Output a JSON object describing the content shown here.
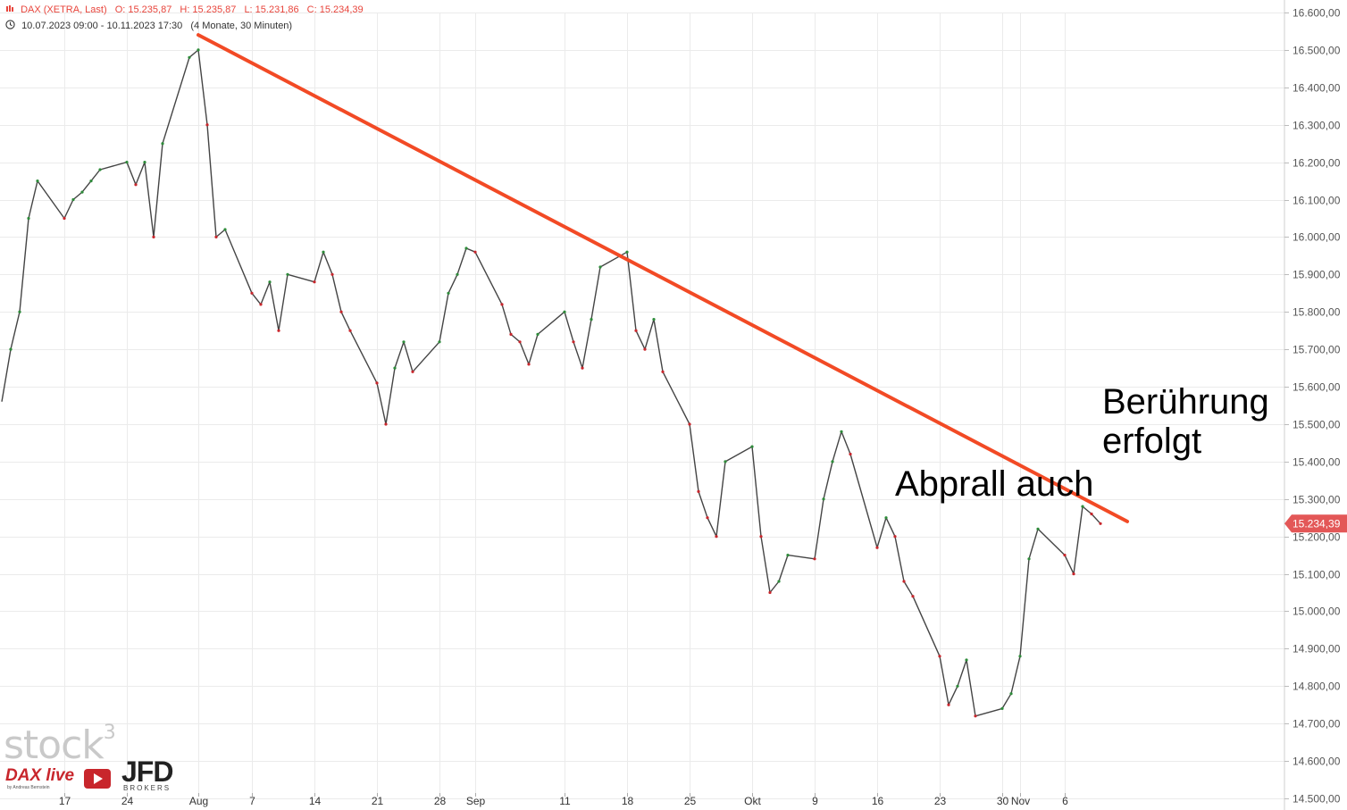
{
  "header": {
    "symbol": "DAX (XETRA, Last)",
    "open": "O: 15.235,87",
    "high": "H: 15.235,87",
    "low": "L: 15.231,86",
    "close": "C: 15.234,39",
    "range": "10.07.2023 09:00 - 10.11.2023 17:30",
    "period": "(4 Monate, 30 Minuten)"
  },
  "annotations": {
    "touch_line1": "Berührung",
    "touch_line2": "erfolgt",
    "bounce": "Abprall auch"
  },
  "logos": {
    "stock": "stock",
    "stock_sup": "3",
    "dax_live": "DAX live",
    "dax_sub": "by Andreas Bernstein",
    "jfd": "JFD",
    "jfd_sub": "BROKERS"
  },
  "colors": {
    "trendline": "#f24a25",
    "price_line": "#444444",
    "candle_up": "#2e8b3a",
    "candle_down": "#c8262c",
    "last_price_tag": "#e35757",
    "grid": "#ebebeb"
  },
  "chart_data": {
    "type": "line",
    "x_axis": {
      "range": [
        "2023-07-10",
        "2023-11-10"
      ],
      "ticks": [
        {
          "date": "2023-07-17",
          "label": "17"
        },
        {
          "date": "2023-07-24",
          "label": "24"
        },
        {
          "date": "2023-08-01",
          "label": "Aug"
        },
        {
          "date": "2023-08-07",
          "label": "7"
        },
        {
          "date": "2023-08-14",
          "label": "14"
        },
        {
          "date": "2023-08-21",
          "label": "21"
        },
        {
          "date": "2023-08-28",
          "label": "28"
        },
        {
          "date": "2023-09-01",
          "label": "Sep"
        },
        {
          "date": "2023-09-11",
          "label": "11"
        },
        {
          "date": "2023-09-18",
          "label": "18"
        },
        {
          "date": "2023-09-25",
          "label": "25"
        },
        {
          "date": "2023-10-02",
          "label": "Okt"
        },
        {
          "date": "2023-10-09",
          "label": "9"
        },
        {
          "date": "2023-10-16",
          "label": "16"
        },
        {
          "date": "2023-10-23",
          "label": "23"
        },
        {
          "date": "2023-10-30",
          "label": "30"
        },
        {
          "date": "2023-11-01",
          "label": "Nov"
        },
        {
          "date": "2023-11-06",
          "label": "6"
        }
      ]
    },
    "y_axis": {
      "min": 14500,
      "max": 16600,
      "ticks": [
        {
          "value": 14500,
          "label": "14.500,00"
        },
        {
          "value": 14600,
          "label": "14.600,00"
        },
        {
          "value": 14700,
          "label": "14.700,00"
        },
        {
          "value": 14800,
          "label": "14.800,00"
        },
        {
          "value": 14900,
          "label": "14.900,00"
        },
        {
          "value": 15000,
          "label": "15.000,00"
        },
        {
          "value": 15100,
          "label": "15.100,00"
        },
        {
          "value": 15200,
          "label": "15.200,00"
        },
        {
          "value": 15300,
          "label": "15.300,00"
        },
        {
          "value": 15400,
          "label": "15.400,00"
        },
        {
          "value": 15500,
          "label": "15.500,00"
        },
        {
          "value": 15600,
          "label": "15.600,00"
        },
        {
          "value": 15700,
          "label": "15.700,00"
        },
        {
          "value": 15800,
          "label": "15.800,00"
        },
        {
          "value": 15900,
          "label": "15.900,00"
        },
        {
          "value": 16000,
          "label": "16.000,00"
        },
        {
          "value": 16100,
          "label": "16.100,00"
        },
        {
          "value": 16200,
          "label": "16.200,00"
        },
        {
          "value": 16300,
          "label": "16.300,00"
        },
        {
          "value": 16400,
          "label": "16.400,00"
        },
        {
          "value": 16500,
          "label": "16.500,00"
        },
        {
          "value": 16600,
          "label": "16.600,00"
        }
      ]
    },
    "grid": true,
    "series": [
      {
        "points": [
          [
            "2023-07-10",
            15560
          ],
          [
            "2023-07-11",
            15700
          ],
          [
            "2023-07-12",
            15800
          ],
          [
            "2023-07-13",
            16050
          ],
          [
            "2023-07-14",
            16150
          ],
          [
            "2023-07-17",
            16050
          ],
          [
            "2023-07-18",
            16100
          ],
          [
            "2023-07-19",
            16120
          ],
          [
            "2023-07-20",
            16150
          ],
          [
            "2023-07-21",
            16180
          ],
          [
            "2023-07-24",
            16200
          ],
          [
            "2023-07-25",
            16140
          ],
          [
            "2023-07-26",
            16200
          ],
          [
            "2023-07-27",
            16000
          ],
          [
            "2023-07-28",
            16250
          ],
          [
            "2023-07-31",
            16480
          ],
          [
            "2023-08-01",
            16500
          ],
          [
            "2023-08-02",
            16300
          ],
          [
            "2023-08-03",
            16000
          ],
          [
            "2023-08-04",
            16020
          ],
          [
            "2023-08-07",
            15850
          ],
          [
            "2023-08-08",
            15820
          ],
          [
            "2023-08-09",
            15880
          ],
          [
            "2023-08-10",
            15750
          ],
          [
            "2023-08-11",
            15900
          ],
          [
            "2023-08-14",
            15880
          ],
          [
            "2023-08-15",
            15960
          ],
          [
            "2023-08-16",
            15900
          ],
          [
            "2023-08-17",
            15800
          ],
          [
            "2023-08-18",
            15750
          ],
          [
            "2023-08-21",
            15610
          ],
          [
            "2023-08-22",
            15500
          ],
          [
            "2023-08-23",
            15650
          ],
          [
            "2023-08-24",
            15720
          ],
          [
            "2023-08-25",
            15640
          ],
          [
            "2023-08-28",
            15720
          ],
          [
            "2023-08-29",
            15850
          ],
          [
            "2023-08-30",
            15900
          ],
          [
            "2023-08-31",
            15970
          ],
          [
            "2023-09-01",
            15960
          ],
          [
            "2023-09-04",
            15820
          ],
          [
            "2023-09-05",
            15740
          ],
          [
            "2023-09-06",
            15720
          ],
          [
            "2023-09-07",
            15660
          ],
          [
            "2023-09-08",
            15740
          ],
          [
            "2023-09-11",
            15800
          ],
          [
            "2023-09-12",
            15720
          ],
          [
            "2023-09-13",
            15650
          ],
          [
            "2023-09-14",
            15780
          ],
          [
            "2023-09-15",
            15920
          ],
          [
            "2023-09-18",
            15960
          ],
          [
            "2023-09-19",
            15750
          ],
          [
            "2023-09-20",
            15700
          ],
          [
            "2023-09-21",
            15780
          ],
          [
            "2023-09-22",
            15640
          ],
          [
            "2023-09-25",
            15500
          ],
          [
            "2023-09-26",
            15320
          ],
          [
            "2023-09-27",
            15250
          ],
          [
            "2023-09-28",
            15200
          ],
          [
            "2023-09-29",
            15400
          ],
          [
            "2023-10-02",
            15440
          ],
          [
            "2023-10-03",
            15200
          ],
          [
            "2023-10-04",
            15050
          ],
          [
            "2023-10-05",
            15080
          ],
          [
            "2023-10-06",
            15150
          ],
          [
            "2023-10-09",
            15140
          ],
          [
            "2023-10-10",
            15300
          ],
          [
            "2023-10-11",
            15400
          ],
          [
            "2023-10-12",
            15480
          ],
          [
            "2023-10-13",
            15420
          ],
          [
            "2023-10-16",
            15170
          ],
          [
            "2023-10-17",
            15250
          ],
          [
            "2023-10-18",
            15200
          ],
          [
            "2023-10-19",
            15080
          ],
          [
            "2023-10-20",
            15040
          ],
          [
            "2023-10-23",
            14880
          ],
          [
            "2023-10-24",
            14750
          ],
          [
            "2023-10-25",
            14800
          ],
          [
            "2023-10-26",
            14870
          ],
          [
            "2023-10-27",
            14720
          ],
          [
            "2023-10-30",
            14740
          ],
          [
            "2023-10-31",
            14780
          ],
          [
            "2023-11-01",
            14880
          ],
          [
            "2023-11-02",
            15140
          ],
          [
            "2023-11-03",
            15220
          ],
          [
            "2023-11-06",
            15150
          ],
          [
            "2023-11-07",
            15100
          ],
          [
            "2023-11-08",
            15280
          ],
          [
            "2023-11-09",
            15260
          ],
          [
            "2023-11-10",
            15234.39
          ]
        ]
      }
    ],
    "trendline": {
      "from": [
        "2023-08-01",
        16540
      ],
      "to": [
        "2023-11-13",
        15240
      ]
    },
    "last_price": {
      "value": 15234.39,
      "label": "15.234,39"
    }
  }
}
